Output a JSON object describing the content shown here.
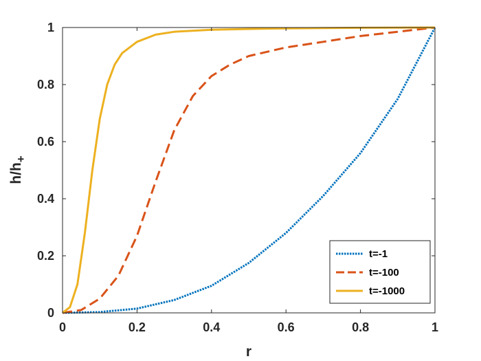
{
  "chart_data": {
    "type": "line",
    "xlabel": "r",
    "ylabel_main": "h/h",
    "ylabel_sub": "+",
    "xlim": [
      0,
      1
    ],
    "ylim": [
      0,
      1
    ],
    "xticks": [
      "0",
      "0.2",
      "0.4",
      "0.6",
      "0.8",
      "1"
    ],
    "yticks": [
      "0",
      "0.2",
      "0.4",
      "0.6",
      "0.8",
      "1"
    ],
    "grid": false,
    "legend_position": "bottom-right",
    "series": [
      {
        "name": "t=-1",
        "color": "#0072BD",
        "style": "dotted",
        "x": [
          0,
          0.1,
          0.2,
          0.3,
          0.4,
          0.5,
          0.6,
          0.7,
          0.8,
          0.9,
          1.0
        ],
        "y": [
          0,
          0.003,
          0.015,
          0.045,
          0.095,
          0.175,
          0.28,
          0.41,
          0.56,
          0.75,
          1.0
        ]
      },
      {
        "name": "t=-100",
        "color": "#D95319",
        "style": "dashed",
        "x": [
          0,
          0.05,
          0.1,
          0.15,
          0.2,
          0.25,
          0.3,
          0.35,
          0.4,
          0.45,
          0.5,
          0.6,
          0.7,
          0.8,
          0.9,
          1.0
        ],
        "y": [
          0,
          0.01,
          0.05,
          0.13,
          0.27,
          0.46,
          0.64,
          0.76,
          0.83,
          0.87,
          0.9,
          0.93,
          0.95,
          0.97,
          0.985,
          1.0
        ]
      },
      {
        "name": "t=-1000",
        "color": "#EDB120",
        "style": "solid",
        "x": [
          0,
          0.02,
          0.04,
          0.06,
          0.08,
          0.1,
          0.12,
          0.14,
          0.16,
          0.2,
          0.25,
          0.3,
          0.4,
          0.5,
          0.6,
          0.8,
          1.0
        ],
        "y": [
          0,
          0.02,
          0.1,
          0.28,
          0.5,
          0.68,
          0.8,
          0.87,
          0.91,
          0.95,
          0.975,
          0.985,
          0.992,
          0.995,
          0.997,
          0.999,
          1.0
        ]
      }
    ]
  }
}
